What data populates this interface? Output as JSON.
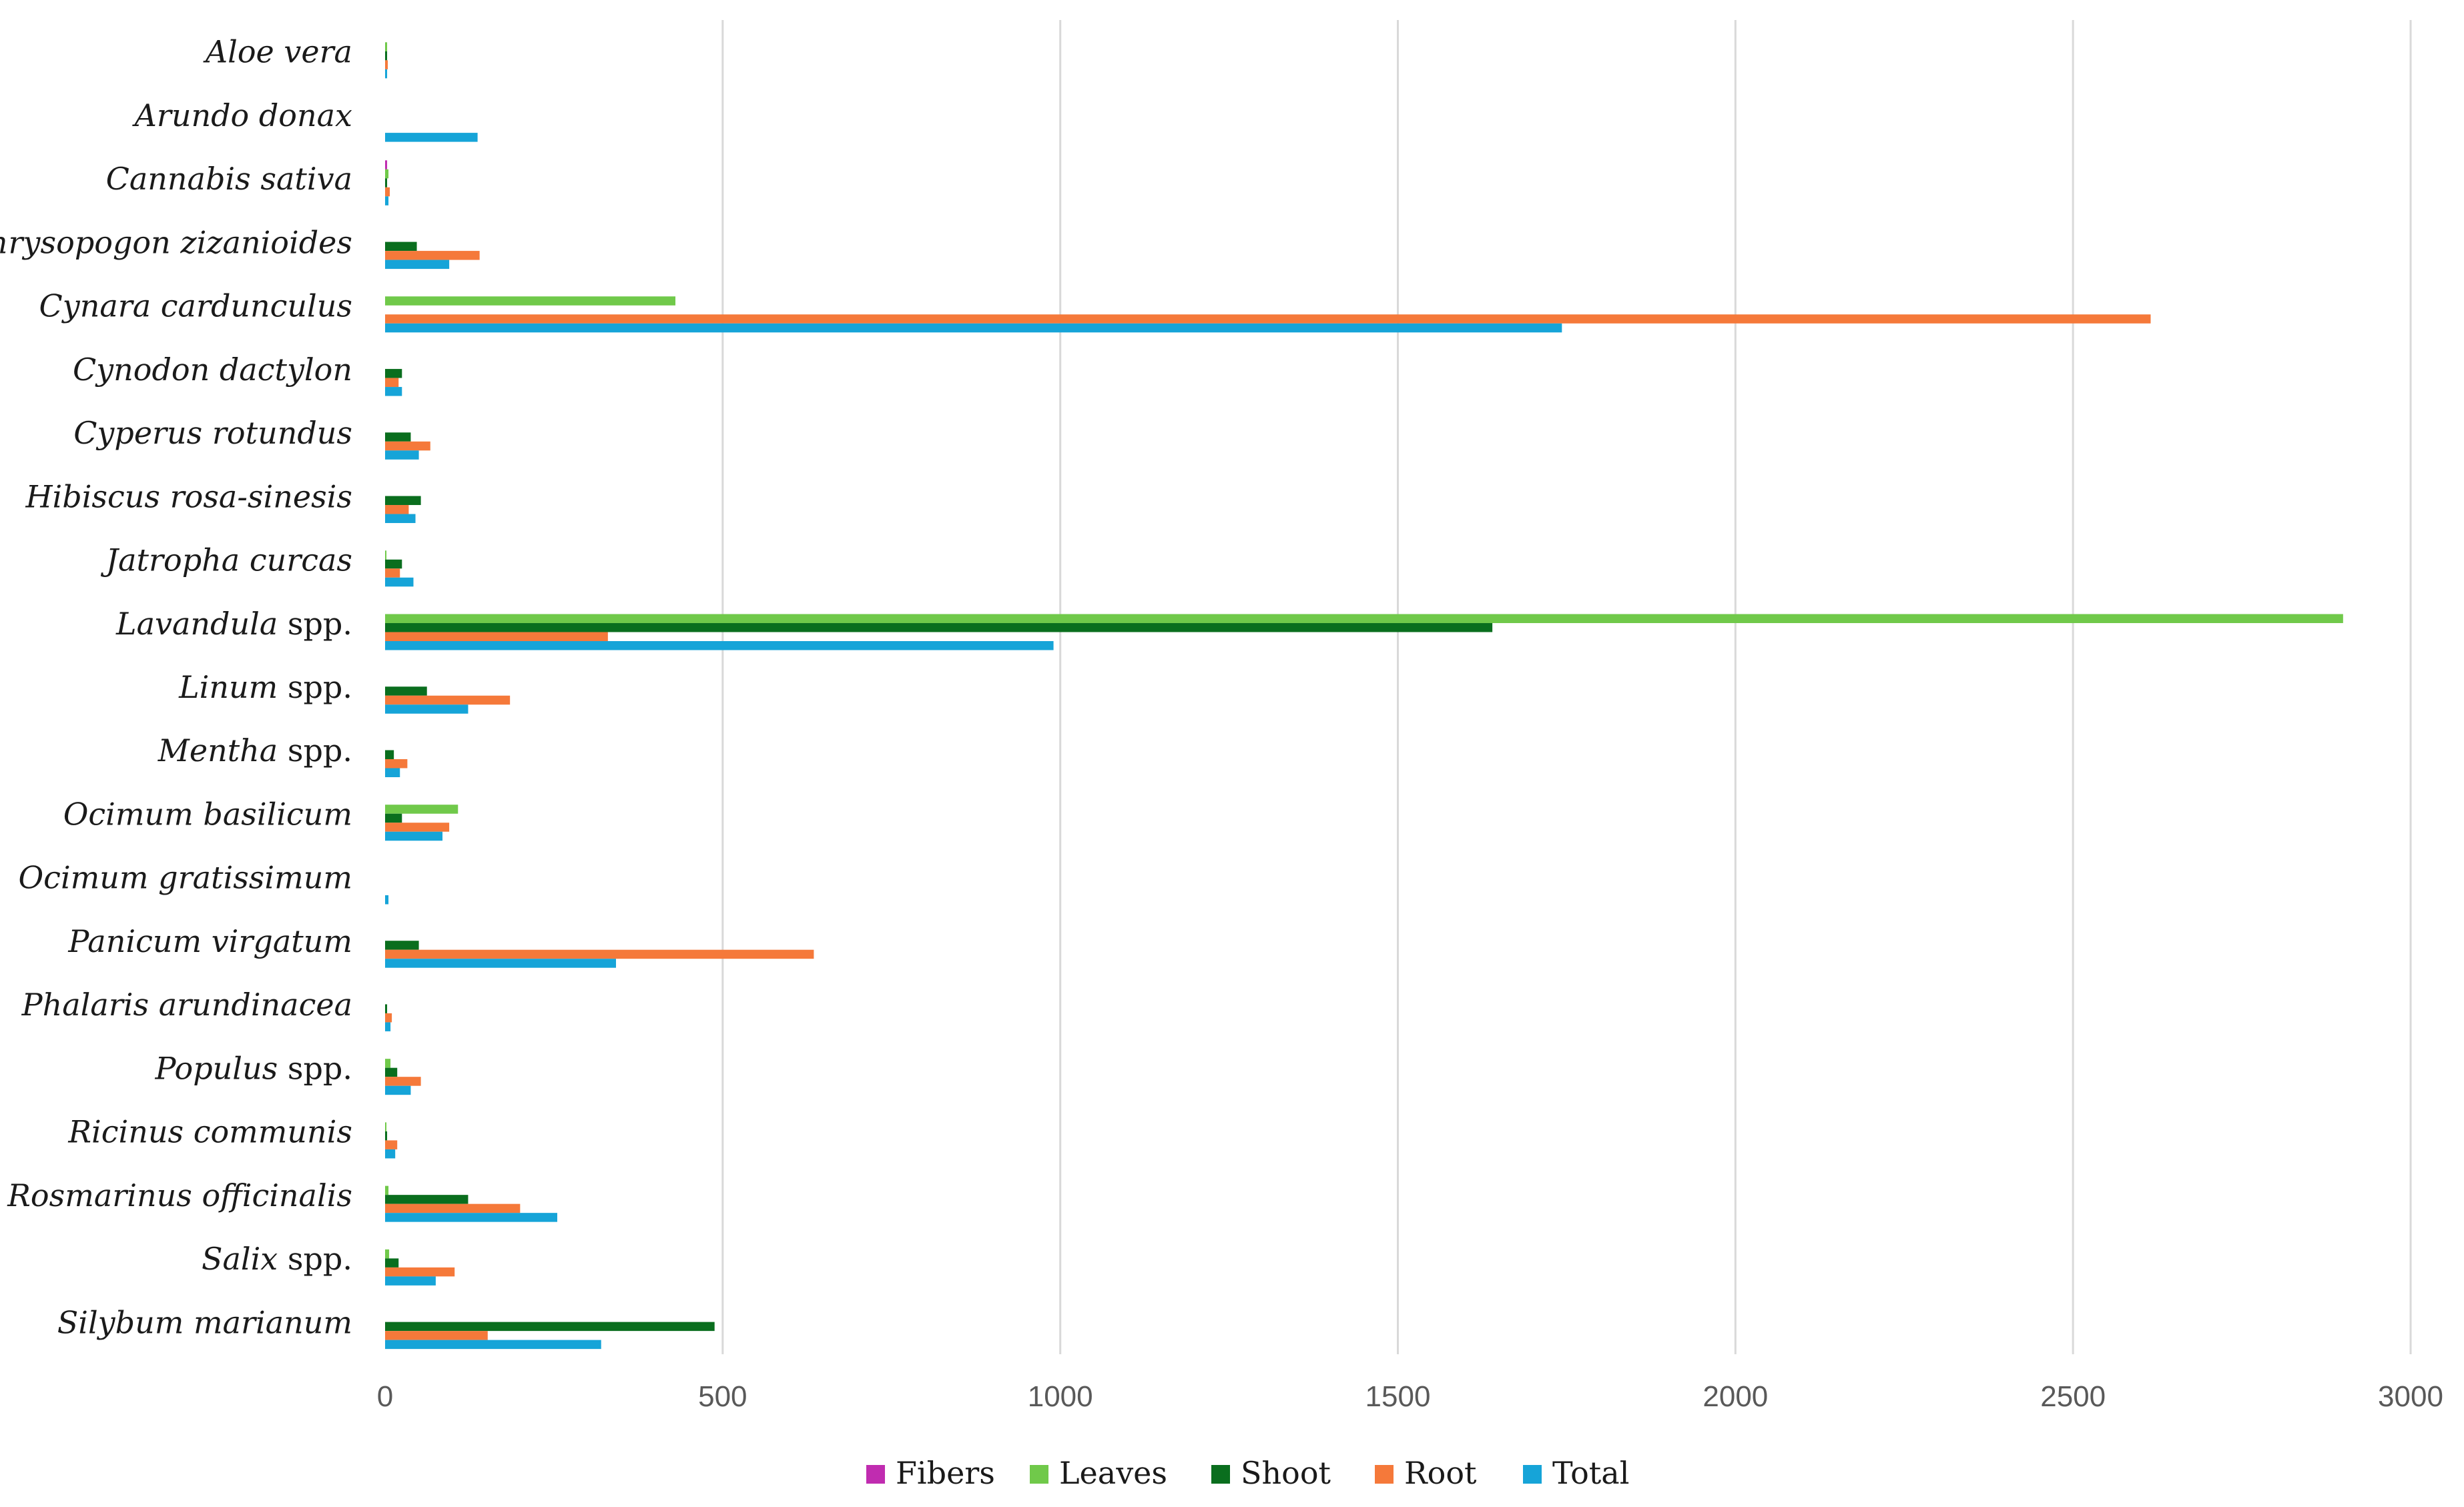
{
  "chart_data": {
    "type": "bar",
    "orientation": "horizontal",
    "title": "",
    "xlabel": "",
    "ylabel": "",
    "xlim": [
      0,
      3000
    ],
    "xticks": [
      0,
      500,
      1000,
      1500,
      2000,
      2500,
      3000
    ],
    "grid": "vertical",
    "legend_position": "bottom",
    "categories": [
      {
        "italic": "Aloe vera",
        "suffix": ""
      },
      {
        "italic": "Arundo donax",
        "suffix": ""
      },
      {
        "italic": "Cannabis sativa",
        "suffix": ""
      },
      {
        "italic": "Chrysopogon zizanioides",
        "suffix": ""
      },
      {
        "italic": "Cynara cardunculus",
        "suffix": ""
      },
      {
        "italic": "Cynodon dactylon",
        "suffix": ""
      },
      {
        "italic": "Cyperus rotundus",
        "suffix": ""
      },
      {
        "italic": "Hibiscus rosa-sinesis",
        "suffix": ""
      },
      {
        "italic": "Jatropha curcas",
        "suffix": ""
      },
      {
        "italic": "Lavandula",
        "suffix": " spp."
      },
      {
        "italic": "Linum",
        "suffix": " spp."
      },
      {
        "italic": "Mentha",
        "suffix": " spp."
      },
      {
        "italic": "Ocimum basilicum",
        "suffix": ""
      },
      {
        "italic": "Ocimum gratissimum",
        "suffix": ""
      },
      {
        "italic": "Panicum virgatum",
        "suffix": ""
      },
      {
        "italic": "Phalaris arundinacea",
        "suffix": ""
      },
      {
        "italic": "Populus",
        "suffix": " spp."
      },
      {
        "italic": "Ricinus communis",
        "suffix": ""
      },
      {
        "italic": "Rosmarinus officinalis",
        "suffix": ""
      },
      {
        "italic": "Salix",
        "suffix": " spp."
      },
      {
        "italic": "Silybum marianum",
        "suffix": ""
      }
    ],
    "series": [
      {
        "name": "Fibers",
        "color": "#c02cb0",
        "values": [
          0,
          0,
          3,
          0,
          0,
          0,
          0,
          0,
          0,
          0,
          0,
          0,
          0,
          0,
          0,
          0,
          0,
          0,
          0,
          0,
          0
        ]
      },
      {
        "name": "Leaves",
        "color": "#70c94a",
        "values": [
          3,
          0,
          5,
          0,
          430,
          0,
          0,
          0,
          2,
          2900,
          0,
          0,
          108,
          0,
          0,
          0,
          8,
          2,
          5,
          6,
          0
        ]
      },
      {
        "name": "Shoot",
        "color": "#0a6e1e",
        "values": [
          3,
          0,
          3,
          47,
          0,
          25,
          38,
          53,
          25,
          1640,
          62,
          13,
          25,
          0,
          50,
          3,
          18,
          3,
          123,
          20,
          488
        ]
      },
      {
        "name": "Root",
        "color": "#f5793a",
        "values": [
          4,
          0,
          7,
          140,
          2615,
          20,
          67,
          35,
          22,
          330,
          185,
          33,
          95,
          0,
          635,
          10,
          53,
          18,
          200,
          103,
          152
        ]
      },
      {
        "name": "Total",
        "color": "#16a4d8",
        "values": [
          3,
          137,
          5,
          95,
          1743,
          25,
          50,
          45,
          42,
          990,
          123,
          22,
          85,
          5,
          342,
          8,
          38,
          15,
          255,
          75,
          320
        ]
      }
    ]
  }
}
